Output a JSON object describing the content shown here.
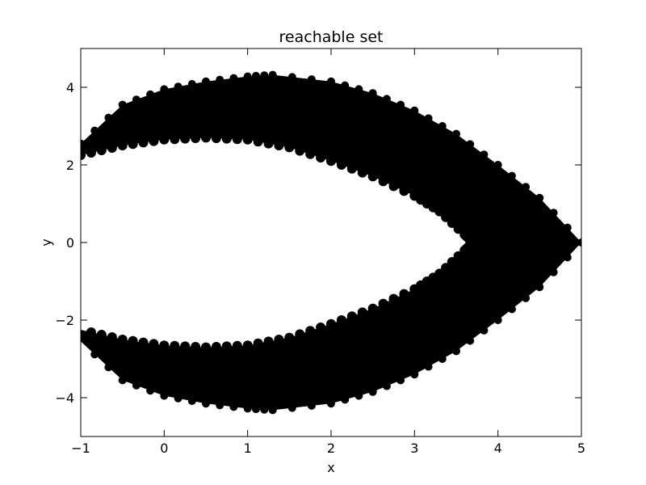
{
  "chart_data": {
    "type": "scatter",
    "title": "reachable set",
    "xlabel": "x",
    "ylabel": "y",
    "xlim": [
      -1,
      5
    ],
    "ylim": [
      -5,
      5
    ],
    "xticks": [
      -1,
      0,
      1,
      2,
      3,
      4,
      5
    ],
    "yticks": [
      -4,
      -2,
      0,
      2,
      4
    ],
    "xtick_labels": [
      "−1",
      "0",
      "1",
      "2",
      "3",
      "4",
      "5"
    ],
    "ytick_labels": [
      "−4",
      "−2",
      "0",
      "2",
      "4"
    ],
    "grid": false,
    "legend": "none",
    "marker_color": "#000000",
    "series": [
      {
        "region": "reachable set (filled band of dots)",
        "outer_boundary": [
          [
            -1.0,
            2.55
          ],
          [
            -0.5,
            3.55
          ],
          [
            0.0,
            3.95
          ],
          [
            0.5,
            4.15
          ],
          [
            1.0,
            4.28
          ],
          [
            1.3,
            4.32
          ],
          [
            2.0,
            4.15
          ],
          [
            2.5,
            3.85
          ],
          [
            3.0,
            3.4
          ],
          [
            3.5,
            2.8
          ],
          [
            4.0,
            2.0
          ],
          [
            4.5,
            1.15
          ],
          [
            5.0,
            0.0
          ],
          [
            4.5,
            -1.15
          ],
          [
            4.0,
            -2.0
          ],
          [
            3.5,
            -2.8
          ],
          [
            3.0,
            -3.4
          ],
          [
            2.5,
            -3.85
          ],
          [
            2.0,
            -4.15
          ],
          [
            1.3,
            -4.32
          ],
          [
            1.0,
            -4.28
          ],
          [
            0.5,
            -4.15
          ],
          [
            0.0,
            -3.95
          ],
          [
            -0.5,
            -3.55
          ],
          [
            -1.0,
            -2.55
          ]
        ],
        "inner_boundary": [
          [
            -1.0,
            2.25
          ],
          [
            -0.5,
            2.5
          ],
          [
            0.0,
            2.65
          ],
          [
            0.5,
            2.7
          ],
          [
            1.0,
            2.65
          ],
          [
            1.5,
            2.45
          ],
          [
            2.0,
            2.1
          ],
          [
            2.5,
            1.7
          ],
          [
            3.0,
            1.2
          ],
          [
            3.3,
            0.8
          ],
          [
            3.6,
            0.2
          ],
          [
            3.7,
            0.0
          ],
          [
            3.6,
            -0.2
          ],
          [
            3.3,
            -0.8
          ],
          [
            3.0,
            -1.2
          ],
          [
            2.5,
            -1.7
          ],
          [
            2.0,
            -2.1
          ],
          [
            1.5,
            -2.45
          ],
          [
            1.0,
            -2.65
          ],
          [
            0.5,
            -2.7
          ],
          [
            0.0,
            -2.65
          ],
          [
            -0.5,
            -2.5
          ],
          [
            -1.0,
            -2.25
          ]
        ]
      }
    ]
  }
}
